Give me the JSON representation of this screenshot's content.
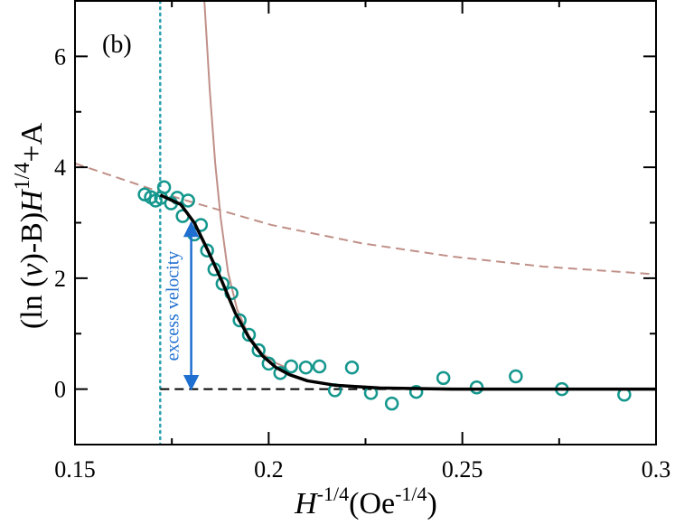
{
  "chart_data": {
    "type": "scatter",
    "annotation": "(b)",
    "xlabel_parts": [
      "H",
      "-1/4",
      "(Oe",
      "-1/4",
      ")"
    ],
    "ylabel_parts": [
      "(ln (",
      "v",
      ")-B)",
      "H",
      "1/4",
      "+A"
    ],
    "xlim": [
      0.15,
      0.3
    ],
    "ylim": [
      -1,
      7
    ],
    "xticks": [
      0.15,
      0.2,
      0.25,
      0.3
    ],
    "yticks": [
      0,
      2,
      4,
      6
    ],
    "xminorticks": [
      0.175,
      0.225,
      0.275
    ],
    "yminorticks": [
      1,
      3,
      5
    ],
    "series": [
      {
        "mode": "line",
        "dash": "dashed",
        "color": "#c09088",
        "width": 2,
        "x": [
          0.15,
          0.1773,
          0.2007,
          0.224,
          0.2474,
          0.2708,
          0.3
        ],
        "values": [
          4.07,
          3.43,
          2.96,
          2.63,
          2.39,
          2.21,
          2.07
        ]
      },
      {
        "mode": "line",
        "dash": "solid",
        "color": "#c09088",
        "width": 2,
        "x": [
          0.1834,
          0.1848,
          0.1862,
          0.1876,
          0.1895,
          0.1918,
          0.1949,
          0.1984,
          0.2019,
          0.2045
        ],
        "values": [
          7.0,
          5.38,
          4.07,
          3.09,
          2.11,
          1.45,
          0.96,
          0.64,
          0.47,
          0.39
        ]
      },
      {
        "mode": "line",
        "dash": "dashed",
        "color": "#000000",
        "width": 2,
        "x": [
          0.172,
          0.3
        ],
        "values": [
          0,
          0
        ]
      },
      {
        "mode": "markers",
        "color": "#14978d",
        "x": [
          0.168,
          0.1696,
          0.1708,
          0.1722,
          0.173,
          0.1748,
          0.1764,
          0.1778,
          0.1792,
          0.1808,
          0.1825,
          0.1841,
          0.186,
          0.1881,
          0.1904,
          0.1925,
          0.1949,
          0.1974,
          0.2,
          0.203,
          0.2058,
          0.2096,
          0.2131,
          0.2171,
          0.2215,
          0.2264,
          0.2318,
          0.2381,
          0.2451,
          0.2537,
          0.2638,
          0.2757,
          0.2918
        ],
        "values": [
          3.51,
          3.46,
          3.4,
          3.45,
          3.64,
          3.35,
          3.45,
          3.12,
          3.4,
          2.79,
          2.96,
          2.5,
          2.16,
          1.9,
          1.73,
          1.24,
          0.98,
          0.7,
          0.46,
          0.29,
          0.41,
          0.39,
          0.41,
          -0.02,
          0.39,
          -0.07,
          -0.26,
          -0.05,
          0.2,
          0.03,
          0.23,
          0.0,
          -0.1
        ]
      },
      {
        "mode": "line",
        "dash": "solid",
        "color": "#000000",
        "width": 3.5,
        "x": [
          0.172,
          0.1773,
          0.1808,
          0.1843,
          0.1879,
          0.1914,
          0.1949,
          0.1984,
          0.2019,
          0.2054,
          0.21,
          0.2171,
          0.2287,
          0.2474,
          0.3
        ],
        "values": [
          3.5,
          3.33,
          3.0,
          2.5,
          1.95,
          1.37,
          0.93,
          0.6,
          0.39,
          0.26,
          0.15,
          0.07,
          0.02,
          0,
          0
        ]
      }
    ],
    "vline": {
      "x": 0.172,
      "color": "#2aa0b0"
    },
    "arrow": {
      "text": "excess velocity",
      "x": 0.18,
      "y": [
        0,
        3.0
      ],
      "color": "#1f6fd0"
    }
  }
}
